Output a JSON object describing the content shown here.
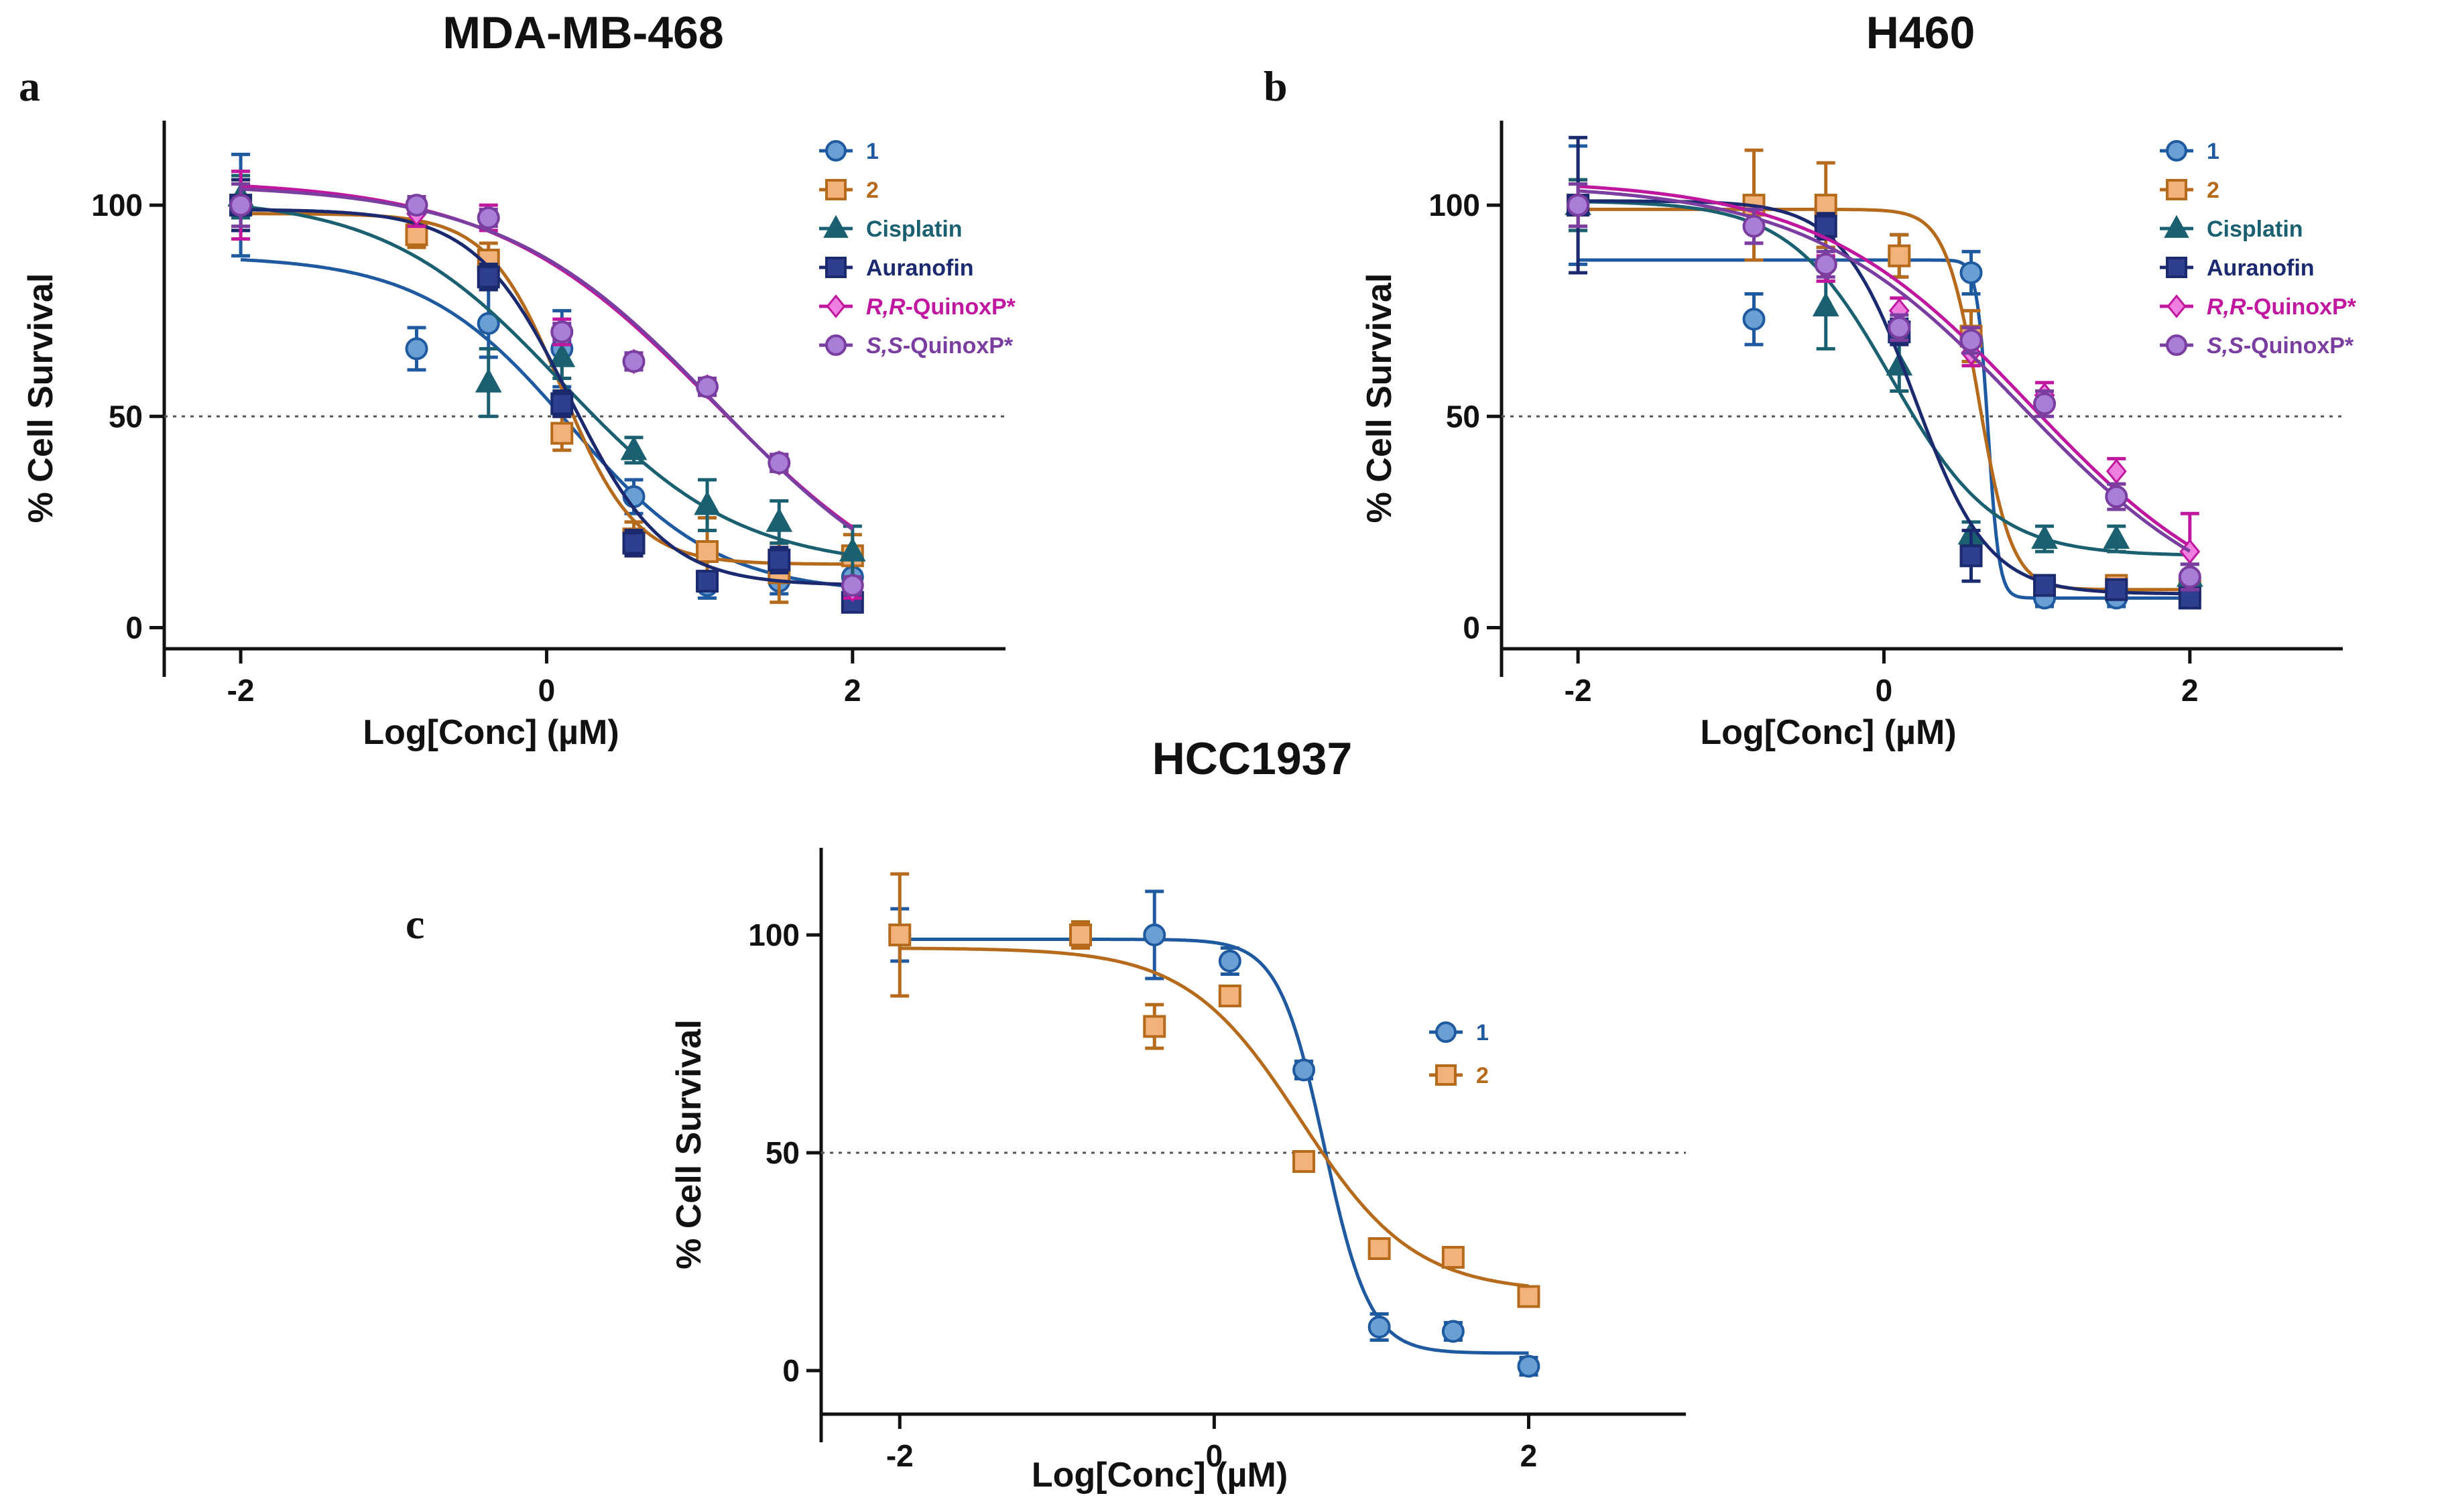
{
  "figure": {
    "panel_count": 3
  },
  "chart_data": [
    {
      "type": "scatter",
      "panel_letter": "a",
      "title": "MDA-MB-468",
      "xlabel": "Log[Conc] (µM)",
      "ylabel": "% Cell Survival",
      "xlim": [
        -2.5,
        3
      ],
      "ylim": [
        -5,
        120
      ],
      "xticks": [
        -2,
        0,
        2
      ],
      "xtick_labels": [
        "-2",
        "0",
        "2"
      ],
      "yticks": [
        0,
        50,
        100
      ],
      "ytick_labels": [
        "0",
        "50",
        "100"
      ],
      "reference_line_y": 50,
      "grid": false,
      "legend_position": "top-right",
      "series": [
        {
          "name": "1",
          "color": "#6a9fd4",
          "line_color": "#1f5aa0",
          "marker": "circle",
          "x": [
            -2,
            -0.85,
            -0.38,
            0.1,
            0.57,
            1.05,
            1.52,
            2
          ],
          "y": [
            100,
            66,
            72,
            66,
            31,
            10,
            11,
            12
          ],
          "err": [
            12,
            5,
            8,
            9,
            4,
            3,
            3,
            3
          ],
          "fit": {
            "bottom": 8,
            "top": 88,
            "logIC50": 0.15,
            "hill": 0.9
          }
        },
        {
          "name": "2",
          "color": "#f2b27a",
          "line_color": "#b56a1c",
          "marker": "square",
          "x": [
            -2,
            -0.85,
            -0.38,
            0.1,
            0.57,
            1.05,
            1.52,
            2
          ],
          "y": [
            100,
            93,
            87,
            46,
            21,
            18,
            13,
            17
          ],
          "err": [
            6,
            3,
            4,
            4,
            4,
            8,
            7,
            5
          ],
          "fit": {
            "bottom": 15,
            "top": 98,
            "logIC50": 0.1,
            "hill": 1.8
          }
        },
        {
          "name": "Cisplatin",
          "color": "#1a6070",
          "line_color": "#1a6070",
          "marker": "triangle",
          "x": [
            -2,
            -0.38,
            0.1,
            0.57,
            1.05,
            1.52,
            2
          ],
          "y": [
            102,
            58,
            64,
            42,
            29,
            25,
            18
          ],
          "err": [
            5,
            8,
            5,
            3,
            6,
            5,
            6
          ],
          "fit": {
            "bottom": 14,
            "top": 102,
            "logIC50": 0.1,
            "hill": 0.75
          }
        },
        {
          "name": "Auranofin",
          "color": "#2e3f8f",
          "line_color": "#1b2a6e",
          "marker": "square",
          "x": [
            -2,
            -0.38,
            0.1,
            0.57,
            1.05,
            1.52,
            2
          ],
          "y": [
            100,
            83,
            53,
            20,
            11,
            16,
            6
          ],
          "err": [
            6,
            3,
            3,
            3,
            2,
            3,
            2
          ],
          "fit": {
            "bottom": 10,
            "top": 99,
            "logIC50": 0.15,
            "hill": 1.4
          }
        },
        {
          "name": "R,R-QuinoxP*",
          "name_italic": "R,R",
          "name_rest": "-QuinoxP*",
          "color": "#ee7fe0",
          "line_color": "#c0179f",
          "marker": "diamond",
          "x": [
            -2,
            -0.85,
            -0.38,
            0.1,
            0.57,
            1.05,
            1.52,
            2
          ],
          "y": [
            100,
            98,
            97,
            70,
            63,
            57,
            39,
            9
          ],
          "err": [
            8,
            3,
            3,
            3,
            2,
            2,
            2,
            2
          ],
          "fit": {
            "bottom": 0,
            "top": 106,
            "logIC50": 1.1,
            "hill": 0.6
          }
        },
        {
          "name": "S,S-QuinoxP*",
          "name_italic": "S,S",
          "name_rest": "-QuinoxP*",
          "color": "#a97ed6",
          "line_color": "#7a3ea0",
          "marker": "circle",
          "x": [
            -2,
            -0.85,
            -0.38,
            0.1,
            0.57,
            1.05,
            1.52,
            2
          ],
          "y": [
            100,
            100,
            97,
            70,
            63,
            57,
            39,
            10
          ],
          "err": [
            5,
            2,
            2,
            2,
            2,
            2,
            2,
            2
          ],
          "fit": {
            "bottom": 0,
            "top": 105,
            "logIC50": 1.12,
            "hill": 0.62
          }
        }
      ]
    },
    {
      "type": "scatter",
      "panel_letter": "b",
      "title": "H460",
      "xlabel": "Log[Conc] (µM)",
      "ylabel": "% Cell Survival",
      "xlim": [
        -2.5,
        3
      ],
      "ylim": [
        -5,
        120
      ],
      "xticks": [
        -2,
        0,
        2
      ],
      "xtick_labels": [
        "-2",
        "0",
        "2"
      ],
      "yticks": [
        0,
        50,
        100
      ],
      "ytick_labels": [
        "0",
        "50",
        "100"
      ],
      "reference_line_y": 50,
      "grid": false,
      "legend_position": "top-right",
      "series": [
        {
          "name": "1",
          "color": "#6a9fd4",
          "line_color": "#1f5aa0",
          "marker": "circle",
          "x": [
            -2,
            -0.85,
            -0.38,
            0.1,
            0.57,
            1.05,
            1.52,
            2
          ],
          "y": [
            100,
            73,
            86,
            88,
            84,
            7,
            7,
            7
          ],
          "err": [
            14,
            6,
            4,
            5,
            5,
            2,
            2,
            2
          ],
          "fit": {
            "bottom": 7,
            "top": 87,
            "logIC50": 0.68,
            "hill": 12
          }
        },
        {
          "name": "2",
          "color": "#f2b27a",
          "line_color": "#b56a1c",
          "marker": "square",
          "x": [
            -2,
            -0.85,
            -0.38,
            0.1,
            0.57,
            1.05,
            1.52,
            2
          ],
          "y": [
            100,
            100,
            100,
            88,
            69,
            10,
            10,
            9
          ],
          "err": [
            6,
            13,
            10,
            5,
            6,
            2,
            2,
            2
          ],
          "fit": {
            "bottom": 9,
            "top": 99,
            "logIC50": 0.62,
            "hill": 4
          }
        },
        {
          "name": "Cisplatin",
          "color": "#1a6070",
          "line_color": "#1a6070",
          "marker": "triangle",
          "x": [
            -2,
            -0.38,
            0.1,
            0.57,
            1.05,
            1.52,
            2
          ],
          "y": [
            100,
            76,
            62,
            22,
            21,
            21,
            12
          ],
          "err": [
            6,
            10,
            6,
            3,
            3,
            3,
            3
          ],
          "fit": {
            "bottom": 17,
            "top": 101,
            "logIC50": 0.05,
            "hill": 1.3
          }
        },
        {
          "name": "Auranofin",
          "color": "#2e3f8f",
          "line_color": "#1b2a6e",
          "marker": "square",
          "x": [
            -2,
            -0.38,
            0.1,
            0.57,
            1.05,
            1.52,
            2
          ],
          "y": [
            100,
            95,
            70,
            17,
            10,
            9,
            7
          ],
          "err": [
            16,
            3,
            3,
            6,
            2,
            2,
            2
          ],
          "fit": {
            "bottom": 8,
            "top": 101,
            "logIC50": 0.2,
            "hill": 1.8
          }
        },
        {
          "name": "R,R-QuinoxP*",
          "name_italic": "R,R",
          "name_rest": "-QuinoxP*",
          "color": "#ee7fe0",
          "line_color": "#c0179f",
          "marker": "diamond",
          "x": [
            -2,
            -0.85,
            -0.38,
            0.1,
            0.57,
            1.05,
            1.52,
            2
          ],
          "y": [
            100,
            95,
            85,
            75,
            65,
            55,
            37,
            18
          ],
          "err": [
            5,
            4,
            3,
            3,
            3,
            3,
            3,
            9
          ],
          "fit": {
            "bottom": 0,
            "top": 106,
            "logIC50": 0.95,
            "hill": 0.62
          }
        },
        {
          "name": "S,S-QuinoxP*",
          "name_italic": "S,S",
          "name_rest": "-QuinoxP*",
          "color": "#a97ed6",
          "line_color": "#7a3ea0",
          "marker": "circle",
          "x": [
            -2,
            -0.85,
            -0.38,
            0.1,
            0.57,
            1.05,
            1.52,
            2
          ],
          "y": [
            100,
            95,
            86,
            71,
            68,
            53,
            31,
            12
          ],
          "err": [
            5,
            4,
            3,
            3,
            3,
            3,
            3,
            3
          ],
          "fit": {
            "bottom": 0,
            "top": 105,
            "logIC50": 0.9,
            "hill": 0.62
          }
        }
      ]
    },
    {
      "type": "scatter",
      "panel_letter": "c",
      "title": "HCC1937",
      "xlabel": "Log[Conc] (µM)",
      "ylabel": "% Cell Survival",
      "xlim": [
        -2.5,
        3
      ],
      "ylim": [
        -10,
        120
      ],
      "xticks": [
        -2,
        0,
        2
      ],
      "xtick_labels": [
        "-2",
        "0",
        "2"
      ],
      "yticks": [
        0,
        50,
        100
      ],
      "ytick_labels": [
        "0",
        "50",
        "100"
      ],
      "reference_line_y": 50,
      "grid": false,
      "legend_position": "right",
      "series": [
        {
          "name": "1",
          "color": "#6a9fd4",
          "line_color": "#1f5aa0",
          "marker": "circle",
          "x": [
            -2,
            -0.85,
            -0.38,
            0.1,
            0.57,
            1.05,
            1.52,
            2
          ],
          "y": [
            100,
            100,
            100,
            94,
            69,
            10,
            9,
            1
          ],
          "err": [
            6,
            3,
            10,
            3,
            2,
            3,
            2,
            2
          ],
          "fit": {
            "bottom": 4,
            "top": 99,
            "logIC50": 0.7,
            "hill": 3
          }
        },
        {
          "name": "2",
          "color": "#f2b27a",
          "line_color": "#b56a1c",
          "marker": "square",
          "x": [
            -2,
            -0.85,
            -0.38,
            0.1,
            0.57,
            1.05,
            1.52,
            2
          ],
          "y": [
            100,
            100,
            79,
            86,
            48,
            28,
            26,
            17
          ],
          "err": [
            14,
            3,
            5,
            2,
            2,
            2,
            2,
            2
          ],
          "fit": {
            "bottom": 18,
            "top": 97,
            "logIC50": 0.55,
            "hill": 1.2
          }
        }
      ]
    }
  ]
}
